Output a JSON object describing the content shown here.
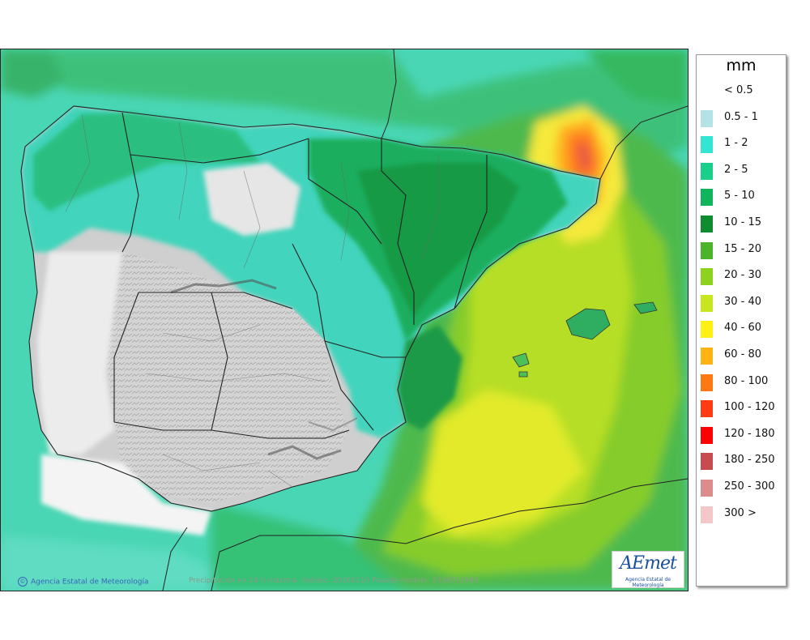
{
  "legend": {
    "unit": "mm",
    "entries": [
      {
        "label": "< 0.5",
        "color": "#ffffff"
      },
      {
        "label": "0.5 - 1",
        "color": "#b4e2e6"
      },
      {
        "label": "1 - 2",
        "color": "#34e6d2"
      },
      {
        "label": "2 - 5",
        "color": "#19cf8a"
      },
      {
        "label": "5 - 10",
        "color": "#10b45a"
      },
      {
        "label": "10 - 15",
        "color": "#0f8c30"
      },
      {
        "label": "15 - 20",
        "color": "#4cb42a"
      },
      {
        "label": "20 - 30",
        "color": "#8cd21e"
      },
      {
        "label": "30 - 40",
        "color": "#c8e61e"
      },
      {
        "label": "40 - 60",
        "color": "#fff014"
      },
      {
        "label": "60 - 80",
        "color": "#ffb414"
      },
      {
        "label": "80 - 100",
        "color": "#ff7814"
      },
      {
        "label": "100 - 120",
        "color": "#ff3c14"
      },
      {
        "label": "120 - 180",
        "color": "#ff0000"
      },
      {
        "label": "180 - 250",
        "color": "#c84b50"
      },
      {
        "label": "250 - 300",
        "color": "#dc8c8c"
      },
      {
        "label": "300 >",
        "color": "#f4c8c8"
      }
    ]
  },
  "footer": {
    "credit": "Agencia Estatal de Meteorología",
    "credit_icon": "copyright-icon",
    "caption": "Precipitación en 24 h máxima. Validez: 20260110 Pasada modelo: 2026011900"
  },
  "logo": {
    "text": "AEmet",
    "subtitle": "Agencia Estatal de Meteorología"
  }
}
